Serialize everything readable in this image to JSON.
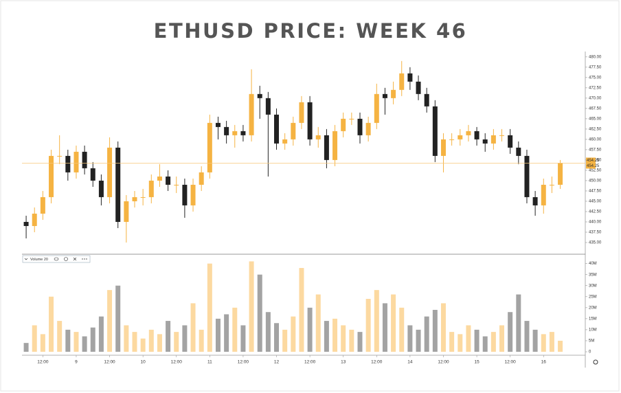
{
  "chart_data": {
    "type": "candlestick",
    "title": "ETHUSD PRICE: WEEK 46",
    "x": [
      6,
      9,
      12,
      15,
      18,
      21,
      24,
      27,
      30,
      33,
      36,
      39,
      42,
      45,
      48,
      51,
      54,
      57,
      60,
      63,
      66,
      69,
      72,
      75,
      78,
      81,
      84,
      87,
      90,
      93,
      96,
      99,
      102,
      105,
      108,
      111,
      114,
      117,
      120,
      123,
      126,
      129,
      132,
      135,
      138,
      141,
      144,
      147,
      150,
      153,
      156,
      159,
      162,
      165,
      168,
      171,
      174,
      177,
      180,
      183,
      186,
      189,
      192,
      195,
      198
    ],
    "open": [
      440,
      439,
      442,
      446,
      456,
      456,
      452,
      457,
      453,
      450,
      446,
      458,
      440,
      445,
      446,
      446,
      450,
      451,
      449,
      449,
      444,
      449,
      452,
      464,
      463,
      461,
      462,
      461,
      471,
      470,
      466,
      459,
      460,
      464,
      469,
      460,
      461,
      455,
      462,
      465,
      465,
      461,
      464,
      471,
      470,
      472,
      476,
      474,
      471,
      468,
      456,
      460,
      460,
      461,
      462,
      460,
      459,
      461,
      461,
      458,
      456,
      446,
      444,
      449,
      449
    ],
    "high": [
      441.5,
      443.5,
      447.5,
      457.5,
      461,
      457.5,
      458.5,
      458.5,
      454.5,
      451.5,
      460.5,
      459.5,
      446.5,
      447.5,
      448,
      451.5,
      454,
      452.5,
      451,
      450.5,
      450.5,
      453.5,
      466,
      465.5,
      464.5,
      463.5,
      463.5,
      477,
      473,
      471.5,
      467.5,
      461.5,
      465.5,
      470.5,
      470.5,
      463,
      462.5,
      463.5,
      466.5,
      466.5,
      466.5,
      465.5,
      473.5,
      472.5,
      474,
      479,
      477.5,
      475.5,
      472.5,
      469.5,
      461.5,
      461.5,
      462.5,
      463.5,
      463,
      461.5,
      462.5,
      462.5,
      462.5,
      459.5,
      457.5,
      447.5,
      450.5,
      451,
      455
    ],
    "low": [
      436,
      437.5,
      440.5,
      444.5,
      454,
      450,
      450.5,
      451.5,
      448.5,
      444,
      444.5,
      438.5,
      435,
      443.5,
      444,
      444.5,
      448.5,
      447.5,
      447,
      441,
      442.5,
      447.5,
      450.5,
      460,
      459,
      458,
      459.5,
      459.5,
      465,
      451,
      457.5,
      457.5,
      458.5,
      462.5,
      458.5,
      458,
      453,
      453.5,
      460.5,
      463.5,
      459,
      459.5,
      462.5,
      466,
      468.5,
      470.5,
      472,
      469.5,
      466.5,
      454.5,
      452,
      458.5,
      458.5,
      459.5,
      458.5,
      457,
      457.5,
      459.5,
      456.5,
      454,
      444.5,
      441.5,
      442,
      447,
      448
    ],
    "close": [
      439,
      442,
      446,
      456,
      456,
      452,
      457,
      453,
      450,
      446,
      458,
      440,
      445,
      446,
      446,
      450,
      451,
      449,
      449,
      444,
      449,
      452,
      464,
      463,
      461,
      462,
      461,
      471,
      470,
      466,
      459,
      460,
      464,
      469,
      460,
      461,
      455,
      462,
      465,
      465,
      461,
      464,
      471,
      470,
      472,
      476,
      474,
      471,
      468,
      456,
      460,
      460,
      461,
      462,
      460,
      459,
      461,
      461,
      458,
      456,
      446,
      444,
      449,
      449,
      454.25
    ],
    "volume": [
      4000000,
      12000000,
      8000000,
      25000000,
      14000000,
      10000000,
      9000000,
      7000000,
      11000000,
      16000000,
      28000000,
      30000000,
      12000000,
      9000000,
      6000000,
      10000000,
      8000000,
      14000000,
      9000000,
      12000000,
      22000000,
      10000000,
      40000000,
      15000000,
      17000000,
      20000000,
      12000000,
      41000000,
      35000000,
      18000000,
      13000000,
      10000000,
      16000000,
      38000000,
      20000000,
      26000000,
      14000000,
      15000000,
      12000000,
      10000000,
      9000000,
      24000000,
      28000000,
      22000000,
      26000000,
      20000000,
      12000000,
      10000000,
      16000000,
      19000000,
      22000000,
      9000000,
      8000000,
      12000000,
      10000000,
      7000000,
      9000000,
      12000000,
      18000000,
      26000000,
      14000000,
      10000000,
      8000000,
      9000000,
      5000000
    ],
    "xlim": [
      4.5,
      207
    ],
    "xticks": [
      {
        "value": 12,
        "label": "12:00"
      },
      {
        "value": 24,
        "label": "9"
      },
      {
        "value": 36,
        "label": "12:00"
      },
      {
        "value": 48,
        "label": "10"
      },
      {
        "value": 60,
        "label": "12:00"
      },
      {
        "value": 72,
        "label": "11"
      },
      {
        "value": 84,
        "label": "12:00"
      },
      {
        "value": 96,
        "label": "12"
      },
      {
        "value": 108,
        "label": "12:00"
      },
      {
        "value": 120,
        "label": "13"
      },
      {
        "value": 132,
        "label": "12:00"
      },
      {
        "value": 144,
        "label": "14"
      },
      {
        "value": 156,
        "label": "12:00"
      },
      {
        "value": 168,
        "label": "15"
      },
      {
        "value": 180,
        "label": "12:00"
      },
      {
        "value": 192,
        "label": "16"
      }
    ],
    "ylim": [
      432.5,
      481.3
    ],
    "yticks": [
      {
        "value": 435,
        "label": "435.00"
      },
      {
        "value": 437.5,
        "label": "437.50"
      },
      {
        "value": 440,
        "label": "440.00"
      },
      {
        "value": 442.5,
        "label": "442.50"
      },
      {
        "value": 445,
        "label": "445.00"
      },
      {
        "value": 447.5,
        "label": "447.50"
      },
      {
        "value": 450,
        "label": "450.00"
      },
      {
        "value": 452.5,
        "label": "452.50"
      },
      {
        "value": 455,
        "label": "455.00"
      },
      {
        "value": 457.5,
        "label": "457.50"
      },
      {
        "value": 460,
        "label": "460.00"
      },
      {
        "value": 462.5,
        "label": "462.50"
      },
      {
        "value": 465,
        "label": "465.00"
      },
      {
        "value": 467.5,
        "label": "467.50"
      },
      {
        "value": 470,
        "label": "470.00"
      },
      {
        "value": 472.5,
        "label": "472.50"
      },
      {
        "value": 475,
        "label": "475.00"
      },
      {
        "value": 477.5,
        "label": "477.50"
      },
      {
        "value": 480,
        "label": "480.00"
      }
    ],
    "price_tags": [
      {
        "value": 454.25,
        "label": "454.25"
      },
      {
        "value": 454.25,
        "label": "454.25"
      }
    ],
    "volume_ylim": [
      0,
      43000000
    ],
    "volume_ticks": [
      0,
      {
        "value": 5000000,
        "label": "5M"
      },
      {
        "value": 10000000,
        "label": "10M"
      },
      {
        "value": 15000000,
        "label": "15M"
      },
      {
        "value": 20000000,
        "label": "20M"
      },
      {
        "value": 25000000,
        "label": "25M"
      },
      {
        "value": 30000000,
        "label": "30M"
      },
      {
        "value": 35000000,
        "label": "35M"
      },
      {
        "value": 40000000,
        "label": "40M"
      }
    ],
    "volume_label": "Volume 20",
    "up_color": "#f5b342",
    "down_color": "#222222",
    "up_volume_color": "#fcd9a0",
    "down_volume_color": "#a3a3a3",
    "price_line_color": "#f7c77a"
  }
}
